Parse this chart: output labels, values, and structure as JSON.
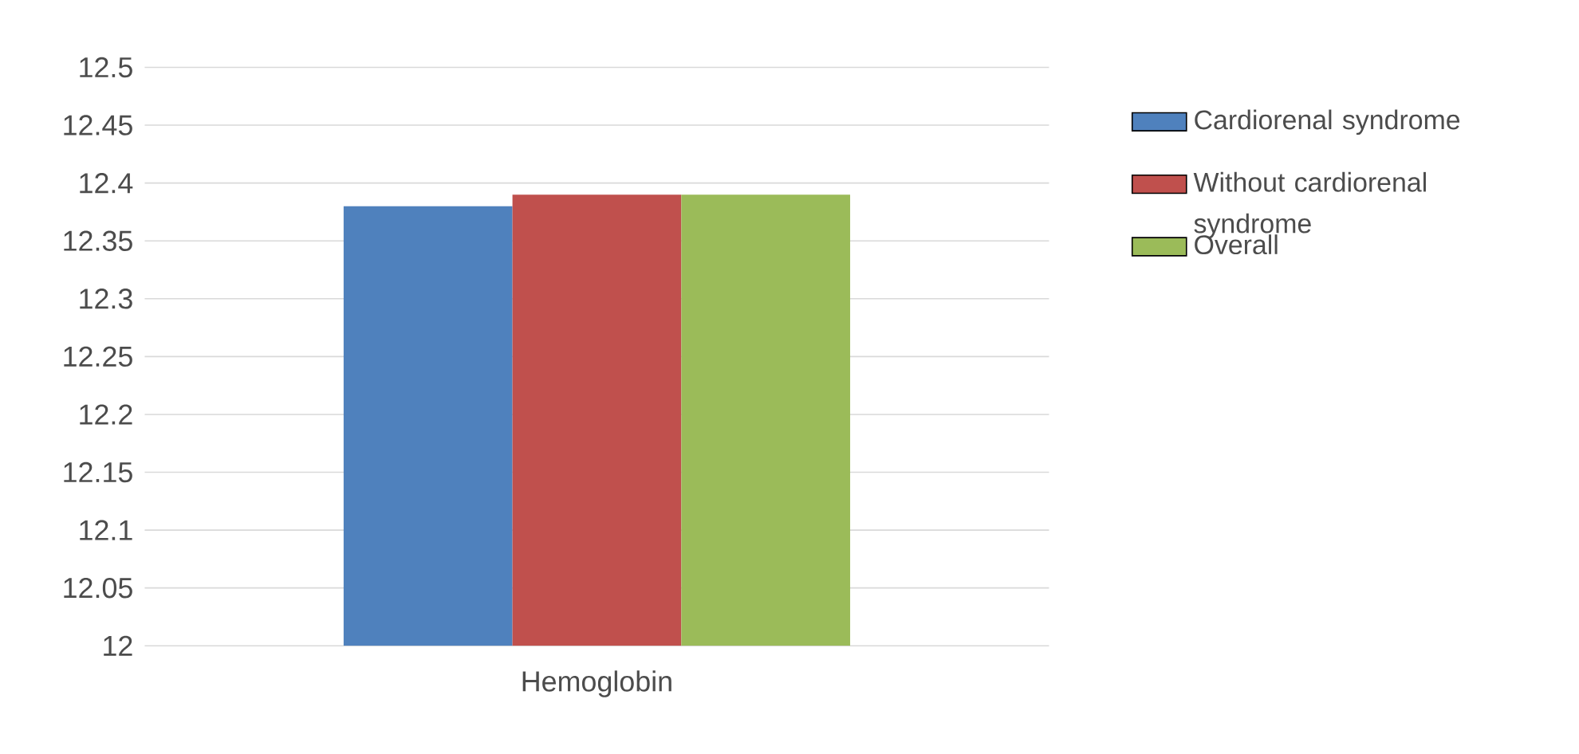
{
  "chart_data": {
    "type": "bar",
    "categories": [
      "Hemoglobin"
    ],
    "series": [
      {
        "name": "Cardiorenal syndrome",
        "color": "#4f81bd",
        "values": [
          12.38
        ]
      },
      {
        "name": "Without cardiorenal syndrome",
        "color": "#c0504d",
        "values": [
          12.39
        ]
      },
      {
        "name": "Overall",
        "color": "#9bbb59",
        "values": [
          12.39
        ]
      }
    ],
    "ylim": [
      12,
      12.5
    ],
    "yticks": [
      12,
      12.05,
      12.1,
      12.15,
      12.2,
      12.25,
      12.3,
      12.35,
      12.4,
      12.45,
      12.5
    ],
    "grid": "y",
    "legend": "right"
  }
}
